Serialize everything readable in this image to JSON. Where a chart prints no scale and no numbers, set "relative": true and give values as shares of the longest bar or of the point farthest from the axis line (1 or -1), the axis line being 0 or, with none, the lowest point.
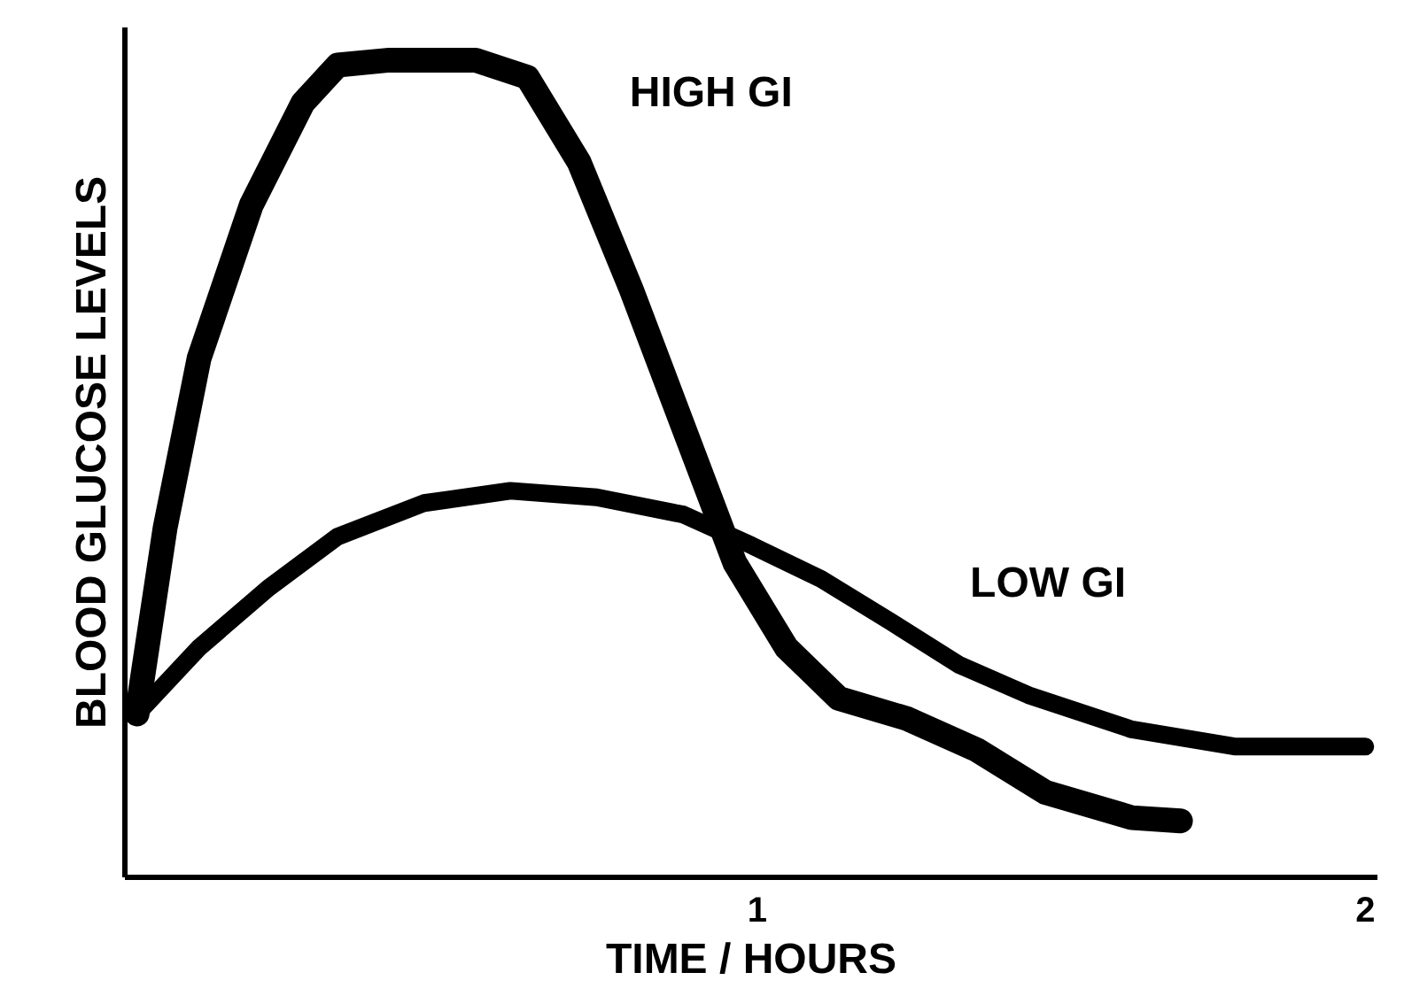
{
  "chart_data": {
    "type": "line",
    "relative": true,
    "xlabel": "TIME / HOURS",
    "ylabel": "BLOOD GLUCOSE LEVELS",
    "xlim": [
      -0.04,
      2.02
    ],
    "xticks": [
      1,
      2
    ],
    "grid": false,
    "line_style": "solid",
    "series": [
      {
        "name": "HIGH GI",
        "color": "#000000",
        "x": [
          -0.02,
          0.026,
          0.082,
          0.168,
          0.253,
          0.31,
          0.395,
          0.537,
          0.622,
          0.707,
          0.793,
          0.878,
          0.963,
          1.048,
          1.134,
          1.247,
          1.361,
          1.474,
          1.616,
          1.696
        ],
        "values": [
          0.2,
          0.427,
          0.635,
          0.823,
          0.948,
          0.994,
          1.0,
          1.0,
          0.979,
          0.875,
          0.719,
          0.552,
          0.385,
          0.281,
          0.219,
          0.194,
          0.156,
          0.104,
          0.073,
          0.069
        ]
      },
      {
        "name": "LOW GI",
        "color": "#000000",
        "x": [
          -0.02,
          0.082,
          0.196,
          0.31,
          0.452,
          0.594,
          0.736,
          0.878,
          0.991,
          1.105,
          1.219,
          1.332,
          1.446,
          1.616,
          1.787,
          2.0
        ],
        "values": [
          0.2,
          0.281,
          0.354,
          0.417,
          0.458,
          0.473,
          0.465,
          0.444,
          0.406,
          0.365,
          0.313,
          0.26,
          0.223,
          0.181,
          0.16,
          0.16
        ]
      }
    ]
  }
}
